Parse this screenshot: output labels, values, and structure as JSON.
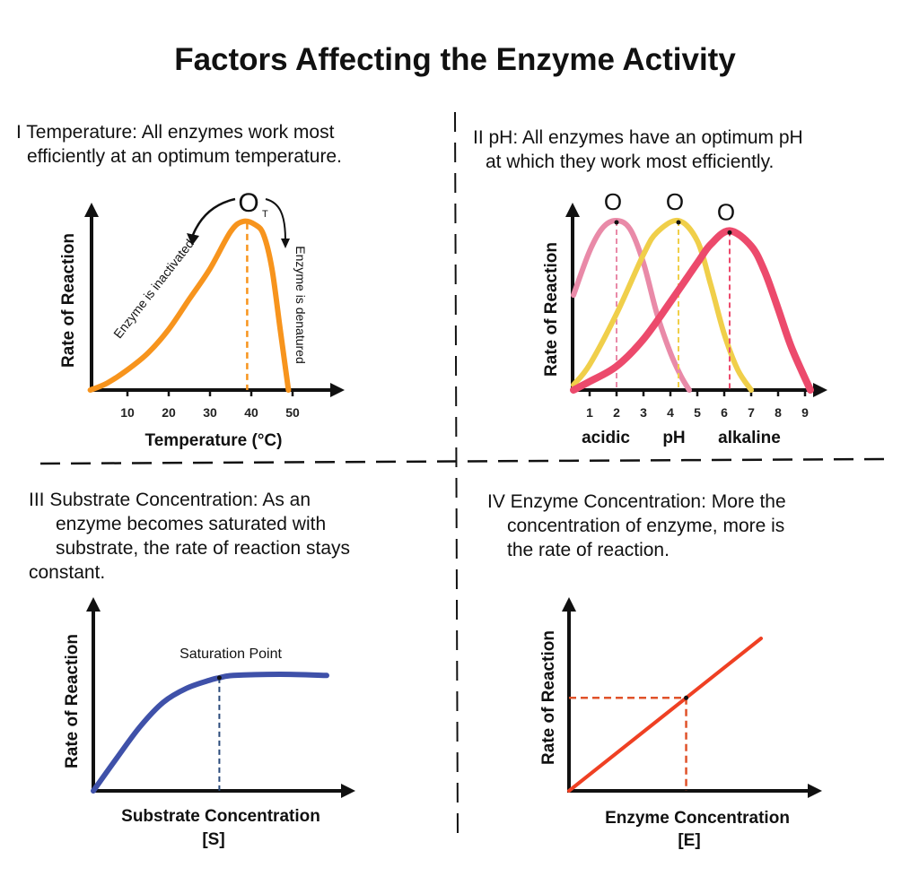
{
  "title": "Factors Affecting the Enzyme Activity",
  "sections": [
    {
      "lines": [
        "I Temperature: All enzymes work most",
        "efficiently at an optimum temperature."
      ]
    },
    {
      "lines": [
        "II pH: All enzymes have an optimum pH",
        "at which they work most efficiently."
      ]
    },
    {
      "lines": [
        "III Substrate Concentration: As an",
        "enzyme becomes saturated with",
        "substrate, the rate of reaction stays",
        "constant."
      ]
    },
    {
      "lines": [
        "IV Enzyme Concentration: More the",
        "concentration of enzyme, more is",
        "the rate of reaction."
      ]
    }
  ],
  "chart_data": [
    {
      "type": "line",
      "xlabel": "Temperature (°C)",
      "ylabel": "Rate of Reaction",
      "xticks": [
        10,
        20,
        30,
        40,
        50
      ],
      "optimum_label": "O",
      "optimum_sub": "T",
      "optimum_x": 39,
      "annotations": [
        "Enzyme is inactivated",
        "Enzyme is denatured"
      ],
      "series": [
        {
          "color": "#f7941d",
          "x": [
            1,
            5,
            10,
            15,
            20,
            25,
            30,
            35,
            38,
            41,
            43,
            45,
            47,
            49
          ],
          "y": [
            0,
            4,
            12,
            22,
            36,
            54,
            72,
            94,
            100,
            98,
            92,
            72,
            36,
            0
          ]
        }
      ]
    },
    {
      "type": "line",
      "xlabel": "pH",
      "xlabel_left": "acidic",
      "xlabel_right": "alkaline",
      "ylabel": "Rate of Reaction",
      "xticks": [
        1,
        2,
        3,
        4,
        5,
        6,
        7,
        8,
        9
      ],
      "optimum_label": "O",
      "series": [
        {
          "color": "#e98aa8",
          "optimum": 2,
          "x": [
            0.4,
            1,
            1.5,
            2,
            2.5,
            3,
            3.5,
            4,
            4.4,
            4.7
          ],
          "y": [
            56,
            82,
            96,
            100,
            95,
            75,
            45,
            22,
            8,
            0
          ]
        },
        {
          "color": "#f0cf4a",
          "optimum": 4.3,
          "x": [
            0.4,
            1,
            2,
            3,
            3.5,
            4.3,
            5,
            5.5,
            6,
            6.5,
            7
          ],
          "y": [
            3,
            15,
            45,
            80,
            93,
            100,
            88,
            62,
            33,
            12,
            0
          ]
        },
        {
          "color": "#ec4a6c",
          "optimum": 6.2,
          "x": [
            0.4,
            1,
            2,
            3,
            4,
            5,
            5.5,
            6.2,
            7,
            7.5,
            8,
            8.5,
            9.2
          ],
          "y": [
            0,
            5,
            14,
            30,
            52,
            75,
            86,
            94,
            85,
            70,
            48,
            25,
            0
          ]
        }
      ]
    },
    {
      "type": "line",
      "xlabel": "Substrate Concentration",
      "xlabel2": "[S]",
      "ylabel": "Rate of Reaction",
      "annotation": "Saturation Point",
      "saturation_x": 54,
      "series": [
        {
          "color": "#3f51a9",
          "x": [
            0,
            10,
            20,
            30,
            40,
            50,
            54,
            60,
            80,
            100
          ],
          "y": [
            0,
            28,
            55,
            76,
            88,
            95,
            97,
            99,
            100,
            99
          ]
        }
      ]
    },
    {
      "type": "line",
      "xlabel": "Enzyme Concentration",
      "xlabel2": "[E]",
      "ylabel": "Rate of Reaction",
      "marker_x": 61,
      "series": [
        {
          "color": "#ef4023",
          "x": [
            0,
            100
          ],
          "y": [
            0,
            100
          ]
        }
      ]
    }
  ]
}
